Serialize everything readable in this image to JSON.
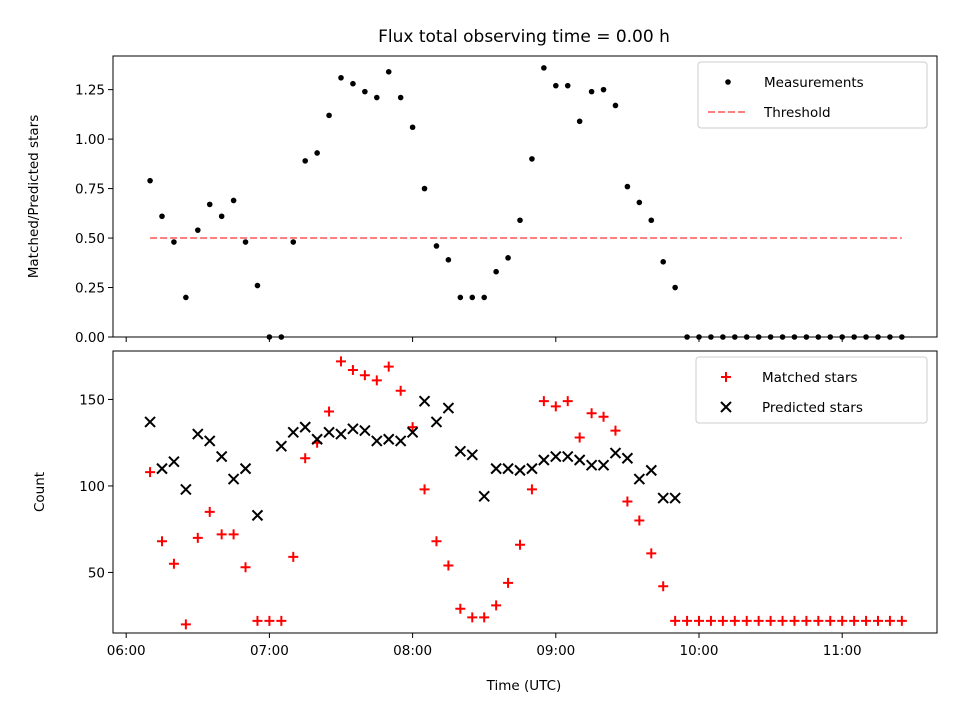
{
  "figure": {
    "title": "Flux total observing time = 0.00 h",
    "xlabel": "Time (UTC)"
  },
  "colors": {
    "measurements": "#000000",
    "threshold": "#ff7f7f",
    "matched": "#ff0000",
    "predicted": "#000000"
  },
  "chart_data": [
    {
      "type": "scatter",
      "title": "Flux total observing time = 0.00 h",
      "ylabel": "Matched/Predicted stars",
      "xlim": [
        "06:00",
        "11:40"
      ],
      "ylim": [
        0,
        1.42
      ],
      "yticks": [
        0.0,
        0.25,
        0.5,
        0.75,
        1.0,
        1.25
      ],
      "ytick_labels": [
        "0.00",
        "0.25",
        "0.50",
        "0.75",
        "1.00",
        "1.25"
      ],
      "legend_position": "top-right",
      "series": [
        {
          "name": "Measurements",
          "marker": "dot",
          "x": [
            "06:10",
            "06:15",
            "06:20",
            "06:25",
            "06:30",
            "06:35",
            "06:40",
            "06:45",
            "06:50",
            "06:55",
            "07:00",
            "07:05",
            "07:10",
            "07:15",
            "07:20",
            "07:25",
            "07:30",
            "07:35",
            "07:40",
            "07:45",
            "07:50",
            "07:55",
            "08:00",
            "08:05",
            "08:10",
            "08:15",
            "08:20",
            "08:25",
            "08:30",
            "08:35",
            "08:40",
            "08:45",
            "08:50",
            "08:55",
            "09:00",
            "09:05",
            "09:10",
            "09:15",
            "09:20",
            "09:25",
            "09:30",
            "09:35",
            "09:40",
            "09:45",
            "09:50",
            "09:55",
            "10:00",
            "10:05",
            "10:10",
            "10:15",
            "10:20",
            "10:25",
            "10:30",
            "10:35",
            "10:40",
            "10:45",
            "10:50",
            "10:55",
            "11:00",
            "11:05",
            "11:10",
            "11:15",
            "11:20",
            "11:25"
          ],
          "y": [
            0.79,
            0.61,
            0.48,
            0.2,
            0.54,
            0.67,
            0.61,
            0.69,
            0.48,
            0.26,
            0.0,
            0.0,
            0.48,
            0.89,
            0.93,
            1.12,
            1.31,
            1.28,
            1.24,
            1.21,
            1.34,
            1.21,
            1.06,
            0.75,
            0.46,
            0.39,
            0.2,
            0.2,
            0.2,
            0.33,
            0.4,
            0.59,
            0.9,
            1.36,
            1.27,
            1.27,
            1.09,
            1.24,
            1.25,
            1.17,
            0.76,
            0.68,
            0.59,
            0.38,
            0.25,
            0.0,
            0.0,
            0.0,
            0.0,
            0.0,
            0.0,
            0.0,
            0.0,
            0.0,
            0.0,
            0.0,
            0.0,
            0.0,
            0.0,
            0.0,
            0.0,
            0.0,
            0.0,
            0.0
          ]
        },
        {
          "name": "Threshold",
          "style": "dashed",
          "x": [
            "06:10",
            "11:25"
          ],
          "y": [
            0.5,
            0.5
          ]
        }
      ]
    },
    {
      "type": "scatter",
      "ylabel": "Count",
      "xlabel": "Time (UTC)",
      "xlim": [
        "06:00",
        "11:40"
      ],
      "ylim": [
        15,
        178
      ],
      "yticks": [
        50,
        100,
        150
      ],
      "ytick_labels": [
        "50",
        "100",
        "150"
      ],
      "xticks": [
        "06:00",
        "07:00",
        "08:00",
        "09:00",
        "10:00",
        "11:00"
      ],
      "xtick_labels": [
        "06:00",
        "07:00",
        "08:00",
        "09:00",
        "10:00",
        "11:00"
      ],
      "legend_position": "top-right",
      "series": [
        {
          "name": "Matched stars",
          "marker": "plus",
          "x": [
            "06:10",
            "06:15",
            "06:20",
            "06:25",
            "06:30",
            "06:35",
            "06:40",
            "06:45",
            "06:50",
            "06:55",
            "07:00",
            "07:05",
            "07:10",
            "07:15",
            "07:20",
            "07:25",
            "07:30",
            "07:35",
            "07:40",
            "07:45",
            "07:50",
            "07:55",
            "08:00",
            "08:05",
            "08:10",
            "08:15",
            "08:20",
            "08:25",
            "08:30",
            "08:35",
            "08:40",
            "08:45",
            "08:50",
            "08:55",
            "09:00",
            "09:05",
            "09:10",
            "09:15",
            "09:20",
            "09:25",
            "09:30",
            "09:35",
            "09:40",
            "09:45",
            "09:50",
            "09:55",
            "10:00",
            "10:05",
            "10:10",
            "10:15",
            "10:20",
            "10:25",
            "10:30",
            "10:35",
            "10:40",
            "10:45",
            "10:50",
            "10:55",
            "11:00",
            "11:05",
            "11:10",
            "11:15",
            "11:20",
            "11:25"
          ],
          "y": [
            108,
            68,
            55,
            20,
            70,
            85,
            72,
            72,
            53,
            22,
            22,
            22,
            59,
            116,
            125,
            143,
            172,
            167,
            164,
            161,
            169,
            155,
            134,
            98,
            68,
            54,
            29,
            24,
            24,
            31,
            44,
            66,
            98,
            149,
            146,
            149,
            128,
            142,
            140,
            132,
            91,
            80,
            61,
            42,
            22,
            22,
            22,
            22,
            22,
            22,
            22,
            22,
            22,
            22,
            22,
            22,
            22,
            22,
            22,
            22,
            22,
            22,
            22,
            22
          ]
        },
        {
          "name": "Predicted stars",
          "marker": "x",
          "x": [
            "06:10",
            "06:15",
            "06:20",
            "06:25",
            "06:30",
            "06:35",
            "06:40",
            "06:45",
            "06:50",
            "06:55",
            "07:05",
            "07:10",
            "07:15",
            "07:20",
            "07:25",
            "07:30",
            "07:35",
            "07:40",
            "07:45",
            "07:50",
            "07:55",
            "08:00",
            "08:05",
            "08:10",
            "08:15",
            "08:20",
            "08:25",
            "08:30",
            "08:35",
            "08:40",
            "08:45",
            "08:50",
            "08:55",
            "09:00",
            "09:05",
            "09:10",
            "09:15",
            "09:20",
            "09:25",
            "09:30",
            "09:35",
            "09:40",
            "09:45",
            "09:50"
          ],
          "y": [
            137,
            110,
            114,
            98,
            130,
            126,
            117,
            104,
            110,
            83,
            123,
            131,
            134,
            127,
            131,
            130,
            133,
            132,
            126,
            127,
            126,
            131,
            149,
            137,
            145,
            120,
            118,
            94,
            110,
            110,
            109,
            110,
            115,
            117,
            117,
            115,
            112,
            112,
            119,
            116,
            104,
            109,
            93,
            93
          ]
        }
      ]
    }
  ]
}
